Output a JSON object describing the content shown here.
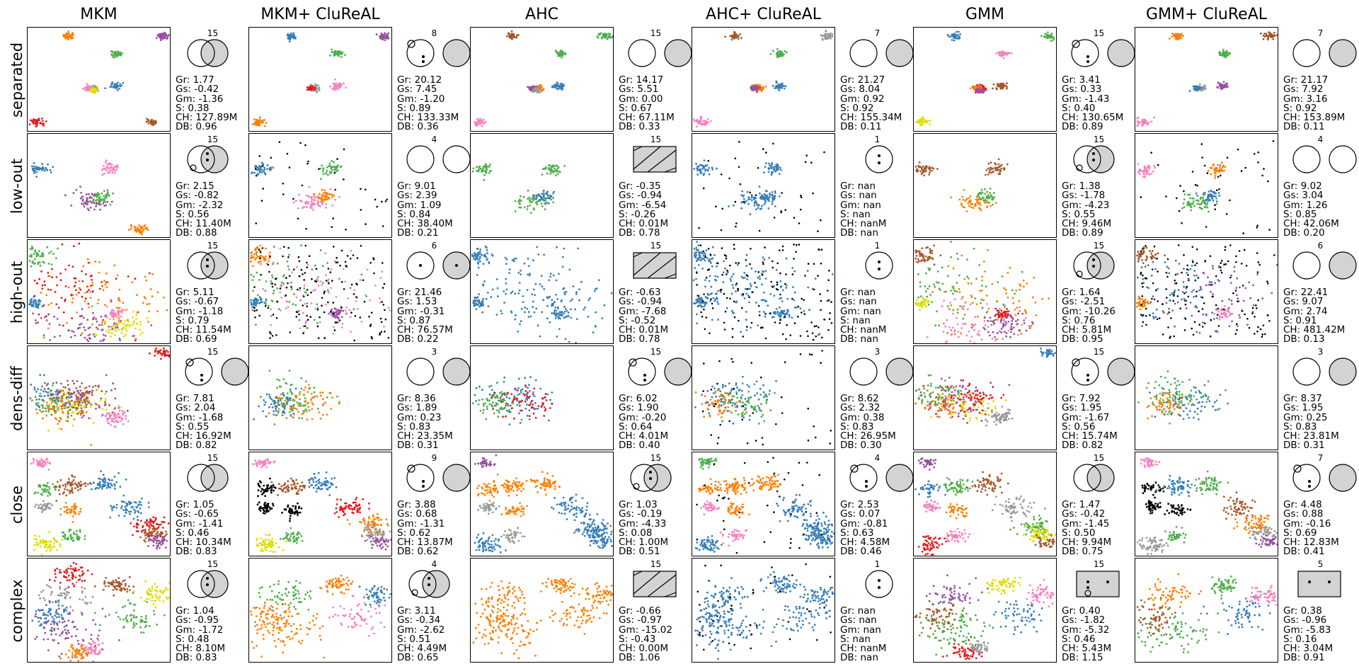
{
  "columns": [
    "MKM",
    "MKM+ CluReAL",
    "AHC",
    "AHC+ CluReAL",
    "GMM",
    "GMM+ CluReAL"
  ],
  "rows": [
    "separated",
    "low-out",
    "high-out",
    "dens-diff",
    "close",
    "complex"
  ],
  "palette": {
    "blue": "#377eb8",
    "orange": "#ff7f00",
    "green": "#4daf4a",
    "pink": "#f781bf",
    "brown": "#a65628",
    "purple": "#984ea3",
    "gray": "#999999",
    "red": "#e41a1c",
    "yellow": "#dede00",
    "black": "#000000",
    "diagram_fill": "#d3d3d3"
  },
  "chart_data": {
    "type": "scatter",
    "metric_keys": [
      "Gr",
      "Gs",
      "Gm",
      "S",
      "CH",
      "DB"
    ],
    "cells": [
      [
        {
          "count": "15",
          "diagram": "overlap",
          "metrics": [
            "1.77",
            "-0.42",
            "-1.36",
            "0.38",
            "127.89M",
            "0.96"
          ],
          "shape": "separated",
          "colors": [
            "orange",
            "purple",
            "green",
            "gray",
            "blue",
            "red",
            "pink",
            "yellow",
            "brown"
          ]
        },
        {
          "count": "8",
          "diagram": "two-small-circle",
          "metrics": [
            "20.12",
            "7.45",
            "-1.20",
            "0.89",
            "133.33M",
            "0.36"
          ],
          "shape": "separated",
          "colors": [
            "blue",
            "purple",
            "green",
            "gray",
            "pink",
            "orange",
            "red"
          ]
        },
        {
          "count": "15",
          "diagram": "two",
          "metrics": [
            "14.17",
            "5.51",
            "0.00",
            "0.67",
            "67.11M",
            "0.33"
          ],
          "shape": "separated",
          "colors": [
            "brown",
            "green",
            "green",
            "orange",
            "blue",
            "pink",
            "purple",
            "gray"
          ]
        },
        {
          "count": "7",
          "diagram": "two",
          "metrics": [
            "21.27",
            "8.04",
            "0.92",
            "0.92",
            "155.34M",
            "0.11"
          ],
          "shape": "separated",
          "colors": [
            "brown",
            "gray",
            "green",
            "orange",
            "blue",
            "pink",
            "purple"
          ]
        },
        {
          "count": "15",
          "diagram": "two-small-circle",
          "metrics": [
            "3.41",
            "0.33",
            "-1.43",
            "0.40",
            "130.65M",
            "0.89"
          ],
          "shape": "separated",
          "colors": [
            "blue",
            "green",
            "pink",
            "red",
            "brown",
            "yellow",
            "orange",
            "purple"
          ]
        },
        {
          "count": "7",
          "diagram": "two",
          "metrics": [
            "21.17",
            "7.92",
            "3.16",
            "0.92",
            "153.89M",
            "0.11"
          ],
          "shape": "separated",
          "colors": [
            "orange",
            "brown",
            "green",
            "gray",
            "purple",
            "pink",
            "blue"
          ]
        }
      ],
      [
        {
          "count": "15",
          "diagram": "overlap-dots-circle",
          "metrics": [
            "2.15",
            "-0.82",
            "-2.32",
            "0.56",
            "11.40M",
            "0.88"
          ],
          "shape": "low-out",
          "colors": [
            "blue",
            "pink",
            "purple",
            "green",
            "orange"
          ]
        },
        {
          "count": "4",
          "diagram": "two-open",
          "metrics": [
            "9.01",
            "2.39",
            "1.09",
            "0.84",
            "38.40M",
            "0.21"
          ],
          "shape": "low-out",
          "colors": [
            "blue",
            "green",
            "pink",
            "orange"
          ],
          "outlier": "black"
        },
        {
          "count": "15",
          "diagram": "box-lines",
          "metrics": [
            "-0.35",
            "-0.94",
            "-6.54",
            "-0.26",
            "0.01M",
            "0.78"
          ],
          "shape": "low-out",
          "colors": [
            "green",
            "green",
            "green",
            "blue"
          ]
        },
        {
          "count": "1",
          "diagram": "single-dots",
          "metrics": [
            "nan",
            "nan",
            "nan",
            "nan",
            "nanM",
            "nan"
          ],
          "shape": "low-out",
          "colors": [
            "blue",
            "blue",
            "blue",
            "blue"
          ],
          "outlier": "black"
        },
        {
          "count": "15",
          "diagram": "overlap-dots-circle",
          "metrics": [
            "1.38",
            "-1.78",
            "-4.23",
            "0.55",
            "9.46M",
            "0.89"
          ],
          "shape": "low-out",
          "colors": [
            "brown",
            "brown",
            "orange",
            "green"
          ]
        },
        {
          "count": "4",
          "diagram": "two-open",
          "metrics": [
            "9.02",
            "3.04",
            "1.26",
            "0.85",
            "42.06M",
            "0.20"
          ],
          "shape": "low-out",
          "colors": [
            "pink",
            "orange",
            "green",
            "blue"
          ],
          "outlier": "black"
        }
      ],
      [
        {
          "count": "15",
          "diagram": "overlap-dots",
          "metrics": [
            "5.11",
            "-0.67",
            "-1.18",
            "0.79",
            "11.54M",
            "0.69"
          ],
          "shape": "high-out",
          "colors": [
            "green",
            "red",
            "blue",
            "orange",
            "pink",
            "purple",
            "yellow"
          ]
        },
        {
          "count": "6",
          "diagram": "two-dots",
          "metrics": [
            "21.46",
            "1.53",
            "-0.31",
            "0.87",
            "76.57M",
            "0.22"
          ],
          "shape": "high-out",
          "colors": [
            "orange",
            "green",
            "blue",
            "pink",
            "purple"
          ],
          "outlier": "black"
        },
        {
          "count": "15",
          "diagram": "box-lines",
          "metrics": [
            "-0.63",
            "-0.94",
            "-7.68",
            "-0.52",
            "0.01M",
            "0.78"
          ],
          "shape": "high-out",
          "colors": [
            "blue",
            "blue",
            "blue",
            "blue",
            "blue"
          ]
        },
        {
          "count": "1",
          "diagram": "single-dots",
          "metrics": [
            "nan",
            "nan",
            "nan",
            "nan",
            "nanM",
            "nan"
          ],
          "shape": "high-out",
          "colors": [
            "blue",
            "blue",
            "blue",
            "blue",
            "blue"
          ],
          "outlier": "black"
        },
        {
          "count": "15",
          "diagram": "overlap-dots-circle",
          "metrics": [
            "1.64",
            "-2.51",
            "-10.26",
            "0.76",
            "5.81M",
            "0.95"
          ],
          "shape": "high-out",
          "colors": [
            "brown",
            "green",
            "yellow",
            "orange",
            "red",
            "pink",
            "purple"
          ]
        },
        {
          "count": "6",
          "diagram": "two",
          "metrics": [
            "22.41",
            "9.07",
            "2.74",
            "0.91",
            "481.42M",
            "0.13"
          ],
          "shape": "high-out",
          "colors": [
            "brown",
            "blue",
            "orange",
            "purple",
            "pink"
          ],
          "outlier": "black"
        }
      ],
      [
        {
          "count": "15",
          "diagram": "two-small-circle",
          "metrics": [
            "7.81",
            "2.04",
            "-1.68",
            "0.55",
            "16.92M",
            "0.82"
          ],
          "shape": "dens-diff",
          "colors": [
            "brown",
            "green",
            "yellow",
            "purple",
            "blue",
            "pink",
            "red",
            "orange"
          ]
        },
        {
          "count": "3",
          "diagram": "two",
          "metrics": [
            "8.36",
            "1.89",
            "0.23",
            "0.83",
            "23.35M",
            "0.31"
          ],
          "shape": "dens-diff",
          "colors": [
            "green",
            "blue",
            "orange"
          ]
        },
        {
          "count": "15",
          "diagram": "two-small-circle",
          "metrics": [
            "6.02",
            "1.90",
            "-0.20",
            "0.64",
            "4.01M",
            "0.40"
          ],
          "shape": "dens-diff",
          "colors": [
            "blue",
            "green",
            "red"
          ]
        },
        {
          "count": "3",
          "diagram": "two",
          "metrics": [
            "8.62",
            "2.32",
            "0.38",
            "0.83",
            "26.95M",
            "0.30"
          ],
          "shape": "dens-diff",
          "colors": [
            "blue",
            "orange",
            "green"
          ],
          "outlier": "black"
        },
        {
          "count": "15",
          "diagram": "two-small-circle",
          "metrics": [
            "7.92",
            "1.95",
            "-1.67",
            "0.56",
            "15.74M",
            "0.82"
          ],
          "shape": "dens-diff",
          "colors": [
            "purple",
            "orange",
            "yellow",
            "red",
            "green",
            "gray",
            "blue"
          ]
        },
        {
          "count": "3",
          "diagram": "two",
          "metrics": [
            "8.37",
            "1.95",
            "0.25",
            "0.83",
            "23.81M",
            "0.31"
          ],
          "shape": "dens-diff",
          "colors": [
            "green",
            "orange",
            "blue"
          ]
        }
      ],
      [
        {
          "count": "15",
          "diagram": "overlap",
          "metrics": [
            "1.05",
            "-0.65",
            "-1.41",
            "0.46",
            "10.34M",
            "0.83"
          ],
          "shape": "close",
          "colors": [
            "pink",
            "green",
            "brown",
            "blue",
            "gray",
            "orange",
            "blue",
            "red",
            "brown",
            "purple",
            "yellow",
            "green"
          ]
        },
        {
          "count": "9",
          "diagram": "two-small-circle",
          "metrics": [
            "3.88",
            "0.68",
            "-1.31",
            "0.62",
            "13.87M",
            "0.62"
          ],
          "shape": "close",
          "colors": [
            "pink",
            "black",
            "brown",
            "blue",
            "black",
            "black",
            "red",
            "orange",
            "gray",
            "purple",
            "yellow",
            "green"
          ]
        },
        {
          "count": "15",
          "diagram": "overlap-dots-circle",
          "metrics": [
            "1.03",
            "-0.19",
            "-4.33",
            "0.08",
            "1.00M",
            "0.51"
          ],
          "shape": "close",
          "colors": [
            "purple",
            "orange",
            "orange",
            "orange",
            "gray",
            "orange",
            "blue",
            "blue",
            "blue",
            "blue",
            "blue",
            "gray"
          ]
        },
        {
          "count": "4",
          "diagram": "two-small-circle",
          "metrics": [
            "2.53",
            "0.07",
            "-0.81",
            "0.63",
            "4.58M",
            "0.46"
          ],
          "shape": "close",
          "colors": [
            "green",
            "orange",
            "orange",
            "orange",
            "pink",
            "orange",
            "blue",
            "blue",
            "blue",
            "blue",
            "blue",
            "pink"
          ],
          "outlier": "black"
        },
        {
          "count": "15",
          "diagram": "overlap",
          "metrics": [
            "1.47",
            "-0.42",
            "-1.45",
            "0.50",
            "9.94M",
            "0.75"
          ],
          "shape": "close",
          "colors": [
            "purple",
            "blue",
            "green",
            "brown",
            "pink",
            "orange",
            "gray",
            "green",
            "yellow",
            "brown",
            "red",
            "pink"
          ]
        },
        {
          "count": "7",
          "diagram": "two-small-circle",
          "metrics": [
            "4.48",
            "0.88",
            "-0.16",
            "0.69",
            "12.83M",
            "0.41"
          ],
          "shape": "close",
          "colors": [
            "pink",
            "black",
            "blue",
            "green",
            "black",
            "black",
            "brown",
            "orange",
            "gray",
            "purple",
            "gray",
            "green"
          ]
        }
      ],
      [
        {
          "count": "15",
          "diagram": "overlap-dots",
          "metrics": [
            "1.04",
            "-0.95",
            "-1.72",
            "0.48",
            "8.10M",
            "0.83"
          ],
          "shape": "complex",
          "colors": [
            "gray",
            "purple",
            "blue",
            "brown",
            "yellow",
            "green",
            "orange",
            "pink",
            "red"
          ]
        },
        {
          "count": "4",
          "diagram": "overlap-dots-circle",
          "metrics": [
            "3.11",
            "-0.34",
            "-2.62",
            "0.51",
            "4.49M",
            "0.65"
          ],
          "shape": "complex",
          "colors": [
            "green",
            "orange",
            "orange",
            "orange",
            "blue",
            "pink"
          ]
        },
        {
          "count": "15",
          "diagram": "box-lines",
          "metrics": [
            "-0.66",
            "-0.97",
            "-15.02",
            "-0.43",
            "0.00M",
            "1.06"
          ],
          "shape": "complex",
          "colors": [
            "orange",
            "orange",
            "orange",
            "orange",
            "orange",
            "orange"
          ]
        },
        {
          "count": "1",
          "diagram": "single-dots",
          "metrics": [
            "nan",
            "nan",
            "nan",
            "nan",
            "nanM",
            "nan"
          ],
          "shape": "complex",
          "colors": [
            "blue",
            "blue",
            "blue",
            "blue",
            "blue",
            "blue"
          ],
          "outlier": "black"
        },
        {
          "count": "15",
          "diagram": "box-dots-circle",
          "metrics": [
            "0.40",
            "-1.82",
            "-5.32",
            "0.46",
            "5.43M",
            "1.15"
          ],
          "shape": "complex",
          "colors": [
            "purple",
            "green",
            "brown",
            "yellow",
            "pink",
            "blue",
            "red",
            "gray"
          ]
        },
        {
          "count": "5",
          "diagram": "box-dots",
          "metrics": [
            "0.38",
            "-0.96",
            "-5.83",
            "0.16",
            "3.04M",
            "0.91"
          ],
          "shape": "complex",
          "colors": [
            "orange",
            "green",
            "brown",
            "green",
            "pink",
            "blue"
          ]
        }
      ]
    ]
  }
}
